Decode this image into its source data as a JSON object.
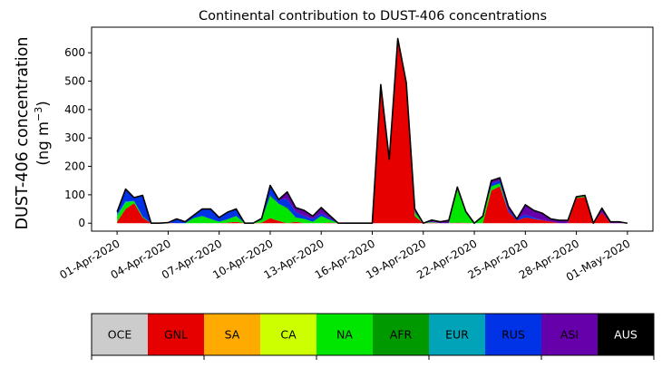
{
  "chart_data": {
    "type": "area",
    "title": "Continental contribution to DUST-406 concentrations",
    "ylabel_line1": "DUST-406 concentration",
    "ylabel_line2_prefix": "(ng m",
    "ylabel_line2_sup": "−3",
    "ylabel_line2_suffix": ")",
    "ylim": [
      -28,
      690
    ],
    "xlim": [
      -1.5,
      31.5
    ],
    "yticks": [
      0,
      100,
      200,
      300,
      400,
      500,
      600
    ],
    "xticks": [
      {
        "x": 0,
        "label": "01-Apr-2020"
      },
      {
        "x": 3,
        "label": "04-Apr-2020"
      },
      {
        "x": 6,
        "label": "07-Apr-2020"
      },
      {
        "x": 9,
        "label": "10-Apr-2020"
      },
      {
        "x": 12,
        "label": "13-Apr-2020"
      },
      {
        "x": 15,
        "label": "16-Apr-2020"
      },
      {
        "x": 18,
        "label": "19-Apr-2020"
      },
      {
        "x": 21,
        "label": "22-Apr-2020"
      },
      {
        "x": 24,
        "label": "25-Apr-2020"
      },
      {
        "x": 27,
        "label": "28-Apr-2020"
      },
      {
        "x": 30,
        "label": "01-May-2020"
      }
    ],
    "x": [
      0,
      0.5,
      1,
      1.5,
      2,
      2.5,
      3,
      3.5,
      4,
      4.5,
      5,
      5.5,
      6,
      6.5,
      7,
      7.5,
      8,
      8.5,
      9,
      9.5,
      10,
      10.5,
      11,
      11.5,
      12,
      12.5,
      13,
      13.5,
      14,
      14.5,
      15,
      15.5,
      16,
      16.5,
      17,
      17.5,
      18,
      18.5,
      19,
      19.5,
      20,
      20.5,
      21,
      21.5,
      22,
      22.5,
      23,
      23.5,
      24,
      24.5,
      25,
      25.5,
      26,
      26.5,
      27,
      27.5,
      28,
      28.5,
      29,
      29.5,
      30
    ],
    "series": [
      {
        "name": "OCE",
        "color": "#cccccc",
        "values": [
          0,
          0,
          0,
          0,
          0,
          0,
          0,
          0,
          0,
          0,
          0,
          0,
          0,
          0,
          0,
          0,
          0,
          0,
          0,
          0,
          0,
          0,
          0,
          0,
          0,
          0,
          0,
          0,
          0,
          0,
          0,
          0,
          0,
          0,
          0,
          0,
          0,
          0,
          0,
          0,
          0,
          0,
          0,
          0,
          0,
          0,
          0,
          0,
          0,
          0,
          0,
          0,
          0,
          0,
          0,
          0,
          0,
          0,
          0,
          0,
          0
        ]
      },
      {
        "name": "GNL",
        "color": "#e60000",
        "values": [
          5,
          50,
          70,
          20,
          0,
          0,
          2,
          0,
          0,
          0,
          0,
          0,
          0,
          2,
          5,
          0,
          0,
          2,
          18,
          8,
          0,
          5,
          0,
          0,
          0,
          2,
          0,
          0,
          0,
          0,
          0,
          488,
          225,
          650,
          495,
          25,
          0,
          2,
          0,
          0,
          2,
          1,
          0,
          0,
          115,
          130,
          40,
          10,
          20,
          15,
          10,
          5,
          0,
          0,
          88,
          93,
          0,
          38,
          0,
          0,
          0
        ]
      },
      {
        "name": "SA",
        "color": "#ffaa00",
        "values": [
          0,
          0,
          0,
          0,
          0,
          0,
          0,
          0,
          0,
          0,
          0,
          0,
          0,
          0,
          0,
          0,
          0,
          0,
          0,
          0,
          0,
          0,
          0,
          0,
          0,
          0,
          0,
          0,
          0,
          0,
          0,
          0,
          0,
          0,
          0,
          0,
          0,
          0,
          0,
          0,
          0,
          0,
          0,
          0,
          0,
          0,
          0,
          0,
          0,
          0,
          0,
          0,
          0,
          0,
          0,
          0,
          0,
          0,
          0,
          0,
          0
        ]
      },
      {
        "name": "CA",
        "color": "#ccff00",
        "values": [
          0,
          0,
          0,
          0,
          0,
          0,
          0,
          0,
          0,
          0,
          0,
          0,
          0,
          0,
          0,
          0,
          0,
          0,
          0,
          0,
          0,
          0,
          0,
          0,
          0,
          0,
          0,
          0,
          0,
          0,
          0,
          0,
          0,
          0,
          0,
          0,
          0,
          0,
          0,
          0,
          0,
          0,
          0,
          0,
          0,
          0,
          0,
          0,
          0,
          0,
          0,
          0,
          0,
          0,
          0,
          0,
          0,
          0,
          0,
          0,
          0
        ]
      },
      {
        "name": "NA",
        "color": "#00e600",
        "values": [
          20,
          22,
          8,
          3,
          0,
          0,
          0,
          0,
          0,
          18,
          25,
          15,
          5,
          12,
          20,
          0,
          0,
          10,
          75,
          60,
          50,
          15,
          15,
          5,
          25,
          10,
          0,
          0,
          0,
          0,
          0,
          0,
          0,
          0,
          0,
          10,
          0,
          2,
          0,
          0,
          115,
          35,
          0,
          25,
          15,
          10,
          0,
          0,
          0,
          0,
          0,
          0,
          0,
          0,
          5,
          5,
          0,
          0,
          0,
          0,
          0
        ]
      },
      {
        "name": "AFR",
        "color": "#009900",
        "values": [
          0,
          0,
          0,
          0,
          0,
          0,
          0,
          0,
          0,
          0,
          0,
          0,
          0,
          0,
          0,
          0,
          0,
          0,
          5,
          0,
          5,
          0,
          0,
          0,
          0,
          0,
          0,
          0,
          0,
          0,
          0,
          0,
          0,
          0,
          0,
          5,
          0,
          0,
          0,
          0,
          5,
          0,
          0,
          0,
          0,
          0,
          0,
          0,
          0,
          0,
          0,
          0,
          0,
          0,
          0,
          0,
          0,
          0,
          0,
          0,
          0
        ]
      },
      {
        "name": "EUR",
        "color": "#00a3b8",
        "values": [
          5,
          5,
          0,
          0,
          0,
          0,
          0,
          0,
          0,
          0,
          0,
          0,
          0,
          0,
          0,
          0,
          0,
          0,
          0,
          0,
          0,
          0,
          0,
          0,
          0,
          0,
          0,
          0,
          0,
          0,
          0,
          0,
          0,
          0,
          0,
          0,
          0,
          0,
          0,
          0,
          0,
          0,
          0,
          0,
          0,
          0,
          0,
          0,
          0,
          0,
          0,
          0,
          0,
          0,
          0,
          0,
          0,
          0,
          0,
          0,
          0
        ]
      },
      {
        "name": "RUS",
        "color": "#0033e6",
        "values": [
          10,
          38,
          12,
          75,
          0,
          0,
          0,
          15,
          5,
          10,
          25,
          35,
          15,
          25,
          25,
          0,
          0,
          5,
          30,
          15,
          30,
          20,
          10,
          10,
          10,
          5,
          0,
          0,
          0,
          0,
          0,
          0,
          0,
          0,
          0,
          5,
          0,
          2,
          0,
          0,
          0,
          5,
          0,
          0,
          10,
          10,
          5,
          5,
          10,
          5,
          0,
          0,
          0,
          0,
          0,
          0,
          0,
          0,
          0,
          0,
          0
        ]
      },
      {
        "name": "ASI",
        "color": "#6600aa",
        "values": [
          0,
          5,
          0,
          0,
          0,
          0,
          0,
          0,
          0,
          0,
          0,
          0,
          0,
          0,
          0,
          0,
          0,
          0,
          5,
          0,
          25,
          15,
          20,
          10,
          20,
          10,
          0,
          0,
          0,
          0,
          0,
          0,
          0,
          0,
          0,
          5,
          0,
          5,
          5,
          10,
          5,
          0,
          0,
          0,
          10,
          10,
          15,
          0,
          35,
          25,
          25,
          10,
          10,
          10,
          0,
          0,
          0,
          15,
          5,
          5,
          0
        ]
      },
      {
        "name": "AUS",
        "color": "#000000",
        "values": [
          0,
          0,
          0,
          0,
          0,
          0,
          0,
          0,
          0,
          0,
          0,
          0,
          0,
          0,
          0,
          0,
          0,
          0,
          0,
          0,
          0,
          0,
          0,
          0,
          0,
          0,
          0,
          0,
          0,
          0,
          0,
          0,
          0,
          0,
          0,
          0,
          0,
          0,
          0,
          0,
          0,
          0,
          0,
          0,
          0,
          0,
          0,
          0,
          0,
          0,
          0,
          0,
          0,
          0,
          0,
          0,
          0,
          0,
          0,
          0,
          0
        ]
      }
    ],
    "legend_placement": "bottom",
    "legend_text_colors": [
      "#000000",
      "#000000",
      "#000000",
      "#000000",
      "#000000",
      "#000000",
      "#000000",
      "#000000",
      "#000000",
      "#ffffff"
    ]
  }
}
